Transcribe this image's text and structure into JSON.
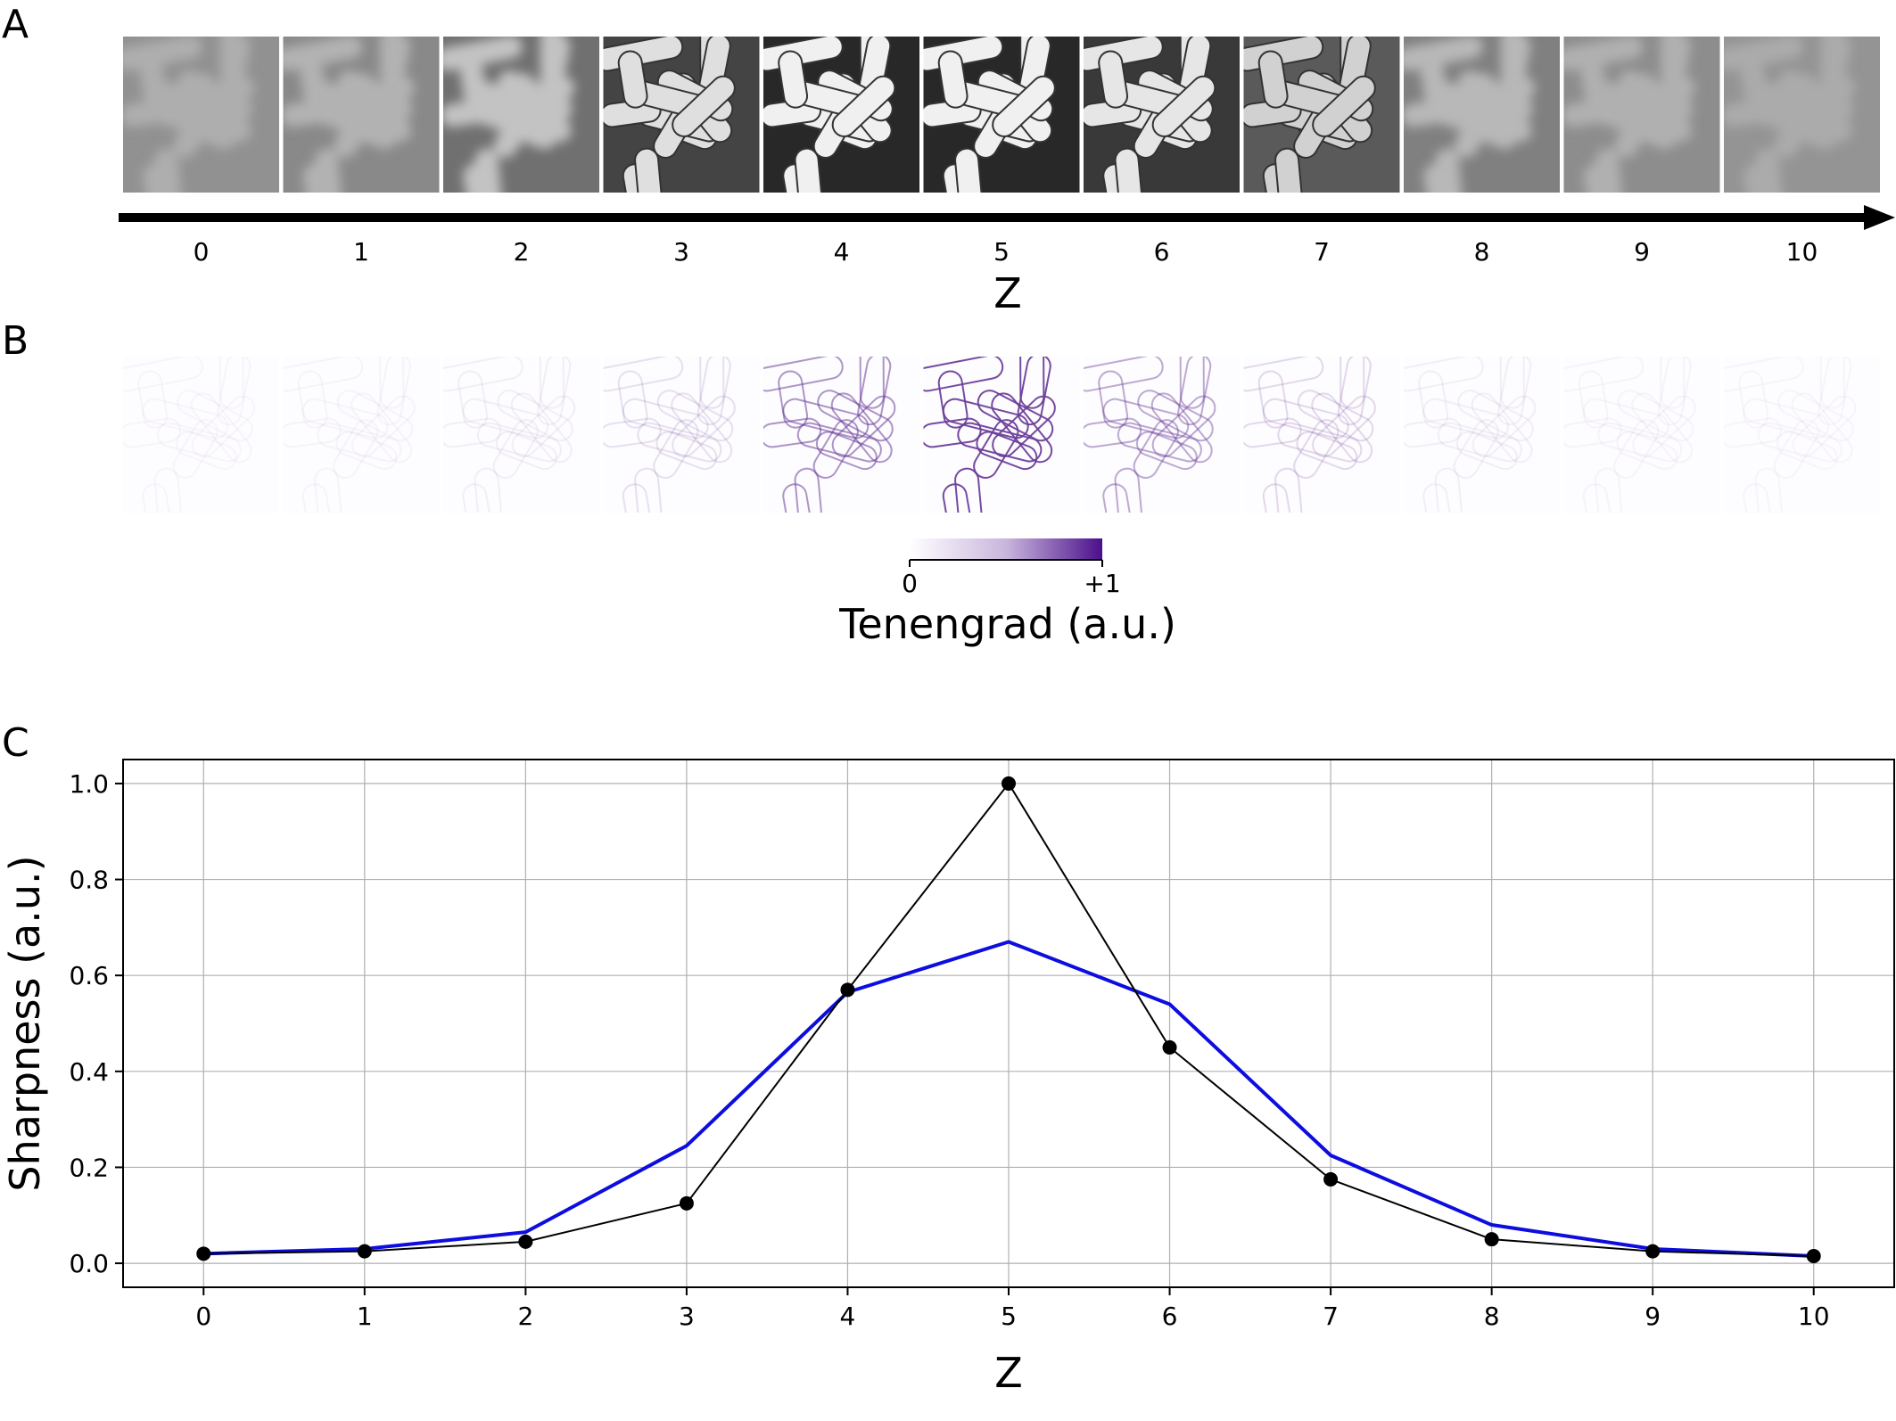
{
  "panels": {
    "a_label": "A",
    "b_label": "B",
    "c_label": "C"
  },
  "panel_a": {
    "tick_labels": [
      "0",
      "1",
      "2",
      "3",
      "4",
      "5",
      "6",
      "7",
      "8",
      "9",
      "10"
    ],
    "xlabel": "Z",
    "focus_levels": [
      0.05,
      0.12,
      0.35,
      0.75,
      1.0,
      1.0,
      0.85,
      0.55,
      0.2,
      0.08,
      0.02
    ]
  },
  "panel_b": {
    "edge_intensity": [
      0.01,
      0.02,
      0.05,
      0.13,
      0.57,
      1.0,
      0.45,
      0.17,
      0.05,
      0.02,
      0.01
    ],
    "colorbar": {
      "min_label": "0",
      "max_label": "+1",
      "label": "Tenengrad (a.u.)",
      "color_low": "#ffffff",
      "color_high": "#4b0f8c"
    }
  },
  "chart_data": {
    "type": "line",
    "x": [
      0,
      1,
      2,
      3,
      4,
      5,
      6,
      7,
      8,
      9,
      10
    ],
    "xlabel": "Z",
    "ylabel": "Sharpness (a.u.)",
    "xlim": [
      -0.5,
      10.5
    ],
    "ylim": [
      -0.05,
      1.05
    ],
    "xticks": [
      "0",
      "1",
      "2",
      "3",
      "4",
      "5",
      "6",
      "7",
      "8",
      "9",
      "10"
    ],
    "yticks": [
      "0.0",
      "0.2",
      "0.4",
      "0.6",
      "0.8",
      "1.0"
    ],
    "grid": true,
    "series": [
      {
        "color": "#000000",
        "marker": "circle",
        "values": [
          0.02,
          0.025,
          0.045,
          0.125,
          0.57,
          1.0,
          0.45,
          0.175,
          0.05,
          0.025,
          0.015
        ]
      },
      {
        "color": "#0d0ddf",
        "marker": "none",
        "values": [
          0.02,
          0.03,
          0.065,
          0.245,
          0.565,
          0.67,
          0.54,
          0.225,
          0.08,
          0.03,
          0.015
        ]
      }
    ]
  }
}
